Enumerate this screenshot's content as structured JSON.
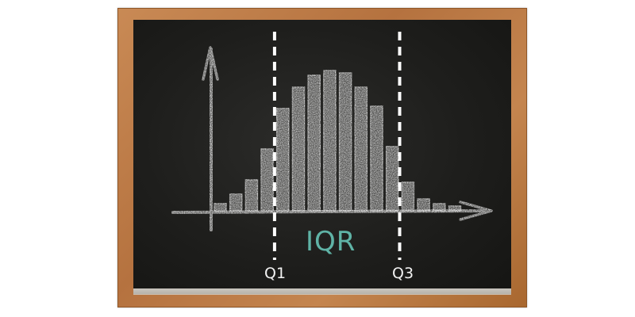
{
  "labels": {
    "iqr": "IQR",
    "q1": "Q1",
    "q3": "Q3"
  },
  "colors": {
    "frame": "#b5723f",
    "board": "#1e1e1c",
    "chalk": "#e6e6e6",
    "iqr_text": "#5fb3a6"
  },
  "chart_data": {
    "type": "bar",
    "title": "",
    "xlabel": "",
    "ylabel": "",
    "values": [
      3,
      7,
      13,
      26,
      43,
      52,
      57,
      59,
      58,
      52,
      44,
      27,
      12,
      5,
      3,
      2
    ],
    "ylim": [
      0,
      65
    ],
    "quartile_markers": [
      {
        "label": "Q1",
        "after_bar_index": 3
      },
      {
        "label": "Q3",
        "after_bar_index": 11
      }
    ],
    "grid": false
  }
}
